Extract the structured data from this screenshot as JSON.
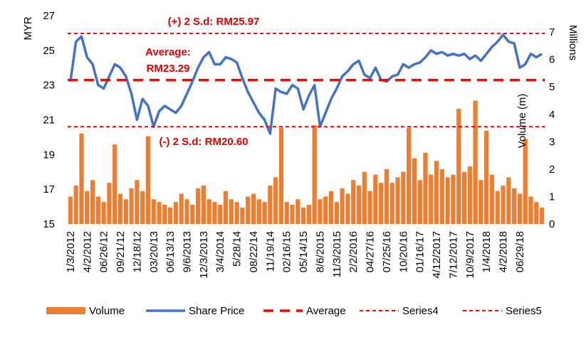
{
  "chart_data": {
    "type": "bar-line",
    "y_label": "MYR",
    "y2_label": "Millions",
    "annotations": [
      "(+) 2 S.d: RM25.97",
      "Average:",
      "RM23.29",
      "(-) 2 S.d: RM20.60",
      "Volume (m)"
    ],
    "categories": [
      "1/3/2012",
      null,
      null,
      "4/2/2012",
      null,
      null,
      "06/26/12",
      null,
      null,
      "09/21/12",
      null,
      null,
      "12/18/12",
      null,
      null,
      "03/20/13",
      null,
      null,
      "06/13/13",
      null,
      null,
      "9/6/2013",
      null,
      null,
      "12/3/2013",
      null,
      null,
      "3/4/2014",
      null,
      null,
      "5/28/14",
      null,
      null,
      "08/22/14",
      null,
      null,
      "11/19/14",
      null,
      null,
      "02/16/15",
      null,
      null,
      "05/14/15",
      null,
      null,
      "8/6/2015",
      null,
      null,
      "11/3/2015",
      null,
      null,
      "2/2/2016",
      null,
      null,
      "04/27/16",
      null,
      null,
      "07/25/16",
      null,
      null,
      "10/20/16",
      null,
      null,
      "01/16/17",
      null,
      null,
      "4/12/2017",
      null,
      null,
      "7/12/2017",
      null,
      null,
      "10/9/2017",
      null,
      null,
      "1/4/2018",
      null,
      null,
      "4/2/2018",
      null,
      null,
      "06/29/18",
      null,
      null,
      null,
      null
    ],
    "ylim": [
      15,
      27
    ],
    "yticks": [
      15,
      17,
      19,
      21,
      23,
      25,
      27
    ],
    "y2lim": [
      0,
      7.6
    ],
    "y2ticks": [
      0,
      1,
      2,
      3,
      4,
      5,
      6,
      7
    ],
    "series": [
      {
        "name": "Volume",
        "kind": "bar",
        "axis": "y2",
        "color": "#ED7D31",
        "values": [
          1.0,
          1.4,
          3.3,
          1.2,
          1.6,
          1.0,
          0.8,
          1.5,
          2.9,
          1.1,
          0.9,
          1.3,
          1.6,
          1.2,
          3.2,
          0.9,
          0.8,
          0.7,
          0.6,
          0.8,
          1.1,
          0.9,
          0.7,
          1.3,
          1.4,
          0.9,
          0.8,
          0.7,
          1.2,
          0.9,
          0.8,
          0.6,
          1.0,
          1.1,
          0.9,
          0.8,
          1.4,
          1.7,
          3.5,
          0.8,
          0.7,
          0.9,
          0.6,
          0.7,
          3.6,
          0.9,
          1.0,
          1.2,
          0.8,
          1.3,
          1.1,
          1.6,
          1.4,
          1.9,
          1.2,
          1.8,
          1.5,
          2.0,
          1.5,
          1.7,
          1.9,
          3.5,
          2.4,
          1.6,
          2.6,
          1.8,
          2.3,
          2.0,
          1.7,
          1.8,
          4.2,
          1.9,
          2.1,
          4.5,
          1.6,
          3.4,
          1.8,
          1.2,
          1.4,
          1.7,
          1.3,
          1.1,
          3.1,
          1.0,
          0.8,
          0.6
        ]
      },
      {
        "name": "Share Price",
        "kind": "line",
        "color": "#4472C4",
        "values": [
          23.2,
          25.5,
          25.8,
          24.6,
          24.2,
          23.0,
          22.8,
          23.5,
          24.2,
          24.0,
          23.5,
          22.5,
          21.0,
          22.2,
          21.8,
          20.6,
          21.5,
          21.8,
          21.6,
          21.4,
          21.8,
          22.5,
          23.2,
          24.0,
          24.6,
          24.9,
          24.2,
          24.2,
          24.6,
          24.5,
          24.3,
          23.4,
          22.6,
          22.0,
          21.4,
          21.0,
          20.2,
          22.8,
          22.6,
          22.5,
          23.0,
          22.8,
          21.6,
          22.4,
          23.0,
          20.6,
          21.4,
          22.2,
          22.8,
          23.5,
          23.8,
          24.2,
          24.4,
          23.6,
          23.4,
          24.0,
          23.3,
          23.2,
          23.5,
          23.6,
          24.2,
          24.0,
          24.2,
          24.3,
          24.6,
          25.0,
          24.8,
          24.9,
          24.7,
          24.8,
          24.7,
          24.8,
          24.5,
          24.7,
          24.4,
          24.8,
          25.2,
          25.5,
          25.9,
          25.5,
          25.4,
          24.0,
          24.2,
          24.8,
          24.6,
          24.8
        ]
      },
      {
        "name": "Average",
        "kind": "hline",
        "color": "#FF0000",
        "value": 23.29
      },
      {
        "name": "Series4",
        "kind": "hline",
        "color": "#FF0000",
        "value": 25.97
      },
      {
        "name": "Series5",
        "kind": "hline",
        "color": "#FF0000",
        "value": 20.6
      }
    ]
  }
}
